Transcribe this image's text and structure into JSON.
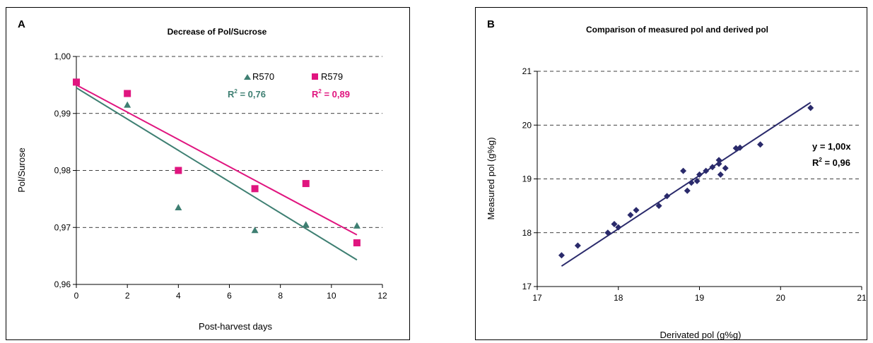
{
  "colors": {
    "r570": "#3e7f72",
    "r579": "#e0157f",
    "b_series": "#2a2a6b"
  },
  "chart_data": [
    {
      "panel_label": "A",
      "type": "scatter",
      "title": "Decrease of Pol/Sucrose",
      "xlabel": "Post-harvest days",
      "ylabel": "Pol/Surose",
      "xlim": [
        0,
        12
      ],
      "ylim": [
        0.96,
        1.0
      ],
      "xticks": [
        "0",
        "2",
        "4",
        "6",
        "8",
        "10",
        "12"
      ],
      "yticks": [
        "0,96",
        "0,97",
        "0,98",
        "0,99",
        "1,00"
      ],
      "grid": "horizontal dashed",
      "legend_position": "top-right",
      "series": [
        {
          "name": "R570",
          "marker": "triangle",
          "points": [
            [
              0,
              0.9955
            ],
            [
              2,
              0.9915
            ],
            [
              4,
              0.9735
            ],
            [
              7,
              0.9695
            ],
            [
              9,
              0.9705
            ],
            [
              11,
              0.9703
            ]
          ],
          "trendline": {
            "x": [
              0,
              11
            ],
            "y": [
              0.9945,
              0.9643
            ]
          },
          "r2_label": "R",
          "r2_sup": "2",
          "r2_value": " = 0,76"
        },
        {
          "name": "R579",
          "marker": "square",
          "points": [
            [
              0,
              0.9955
            ],
            [
              2,
              0.9935
            ],
            [
              4,
              0.98
            ],
            [
              7,
              0.9768
            ],
            [
              9,
              0.9777
            ],
            [
              11,
              0.9673
            ]
          ],
          "trendline": {
            "x": [
              0,
              11
            ],
            "y": [
              0.995,
              0.9687
            ]
          },
          "r2_label": "R",
          "r2_sup": "2",
          "r2_value": " = 0,89"
        }
      ]
    },
    {
      "panel_label": "B",
      "type": "scatter",
      "title": "Comparison of measured pol and derived pol",
      "xlabel": "Derivated pol (g%g)",
      "ylabel": "Measured pol (g%g)",
      "xlim": [
        17,
        21
      ],
      "ylim": [
        17,
        21
      ],
      "xticks": [
        "17",
        "18",
        "19",
        "20",
        "21"
      ],
      "yticks": [
        "17",
        "18",
        "19",
        "20",
        "21"
      ],
      "grid": "horizontal dashed",
      "equation": "y = 1,00x",
      "r2_label": "R",
      "r2_sup": "2",
      "r2_value": " = 0,96",
      "series": [
        {
          "marker": "diamond",
          "points": [
            [
              17.3,
              17.58
            ],
            [
              17.5,
              17.76
            ],
            [
              17.87,
              18.0
            ],
            [
              17.95,
              18.16
            ],
            [
              18.0,
              18.1
            ],
            [
              18.15,
              18.33
            ],
            [
              18.22,
              18.42
            ],
            [
              18.5,
              18.5
            ],
            [
              18.6,
              18.68
            ],
            [
              18.8,
              19.15
            ],
            [
              18.85,
              18.78
            ],
            [
              18.9,
              18.93
            ],
            [
              18.97,
              18.96
            ],
            [
              19.0,
              19.08
            ],
            [
              19.08,
              19.15
            ],
            [
              19.16,
              19.22
            ],
            [
              19.24,
              19.35
            ],
            [
              19.24,
              19.28
            ],
            [
              19.26,
              19.08
            ],
            [
              19.32,
              19.2
            ],
            [
              19.45,
              19.57
            ],
            [
              19.5,
              19.58
            ],
            [
              19.75,
              19.64
            ],
            [
              20.37,
              20.32
            ]
          ],
          "trendline": {
            "x": [
              17.3,
              20.37
            ],
            "y": [
              17.38,
              20.42
            ]
          }
        }
      ]
    }
  ]
}
